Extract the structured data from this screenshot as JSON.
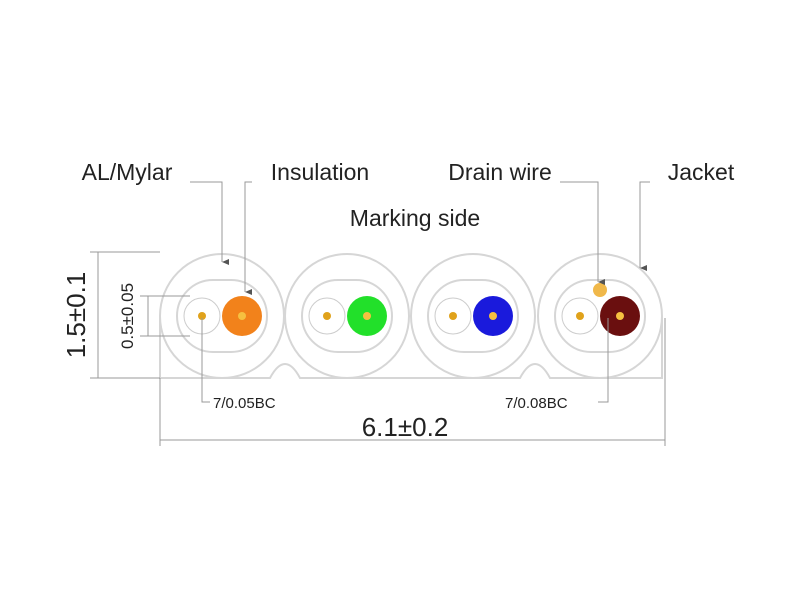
{
  "labels": {
    "al_mylar": "AL/Mylar",
    "insulation": "Insulation",
    "drain_wire": "Drain wire",
    "jacket": "Jacket",
    "marking_side": "Marking side"
  },
  "dimensions": {
    "thickness": "1.5±0.1",
    "conductor": "0.5±0.05",
    "width": "6.1±0.2"
  },
  "conductors": {
    "signal": "7/0.05BC",
    "drain": "7/0.08BC"
  }
}
